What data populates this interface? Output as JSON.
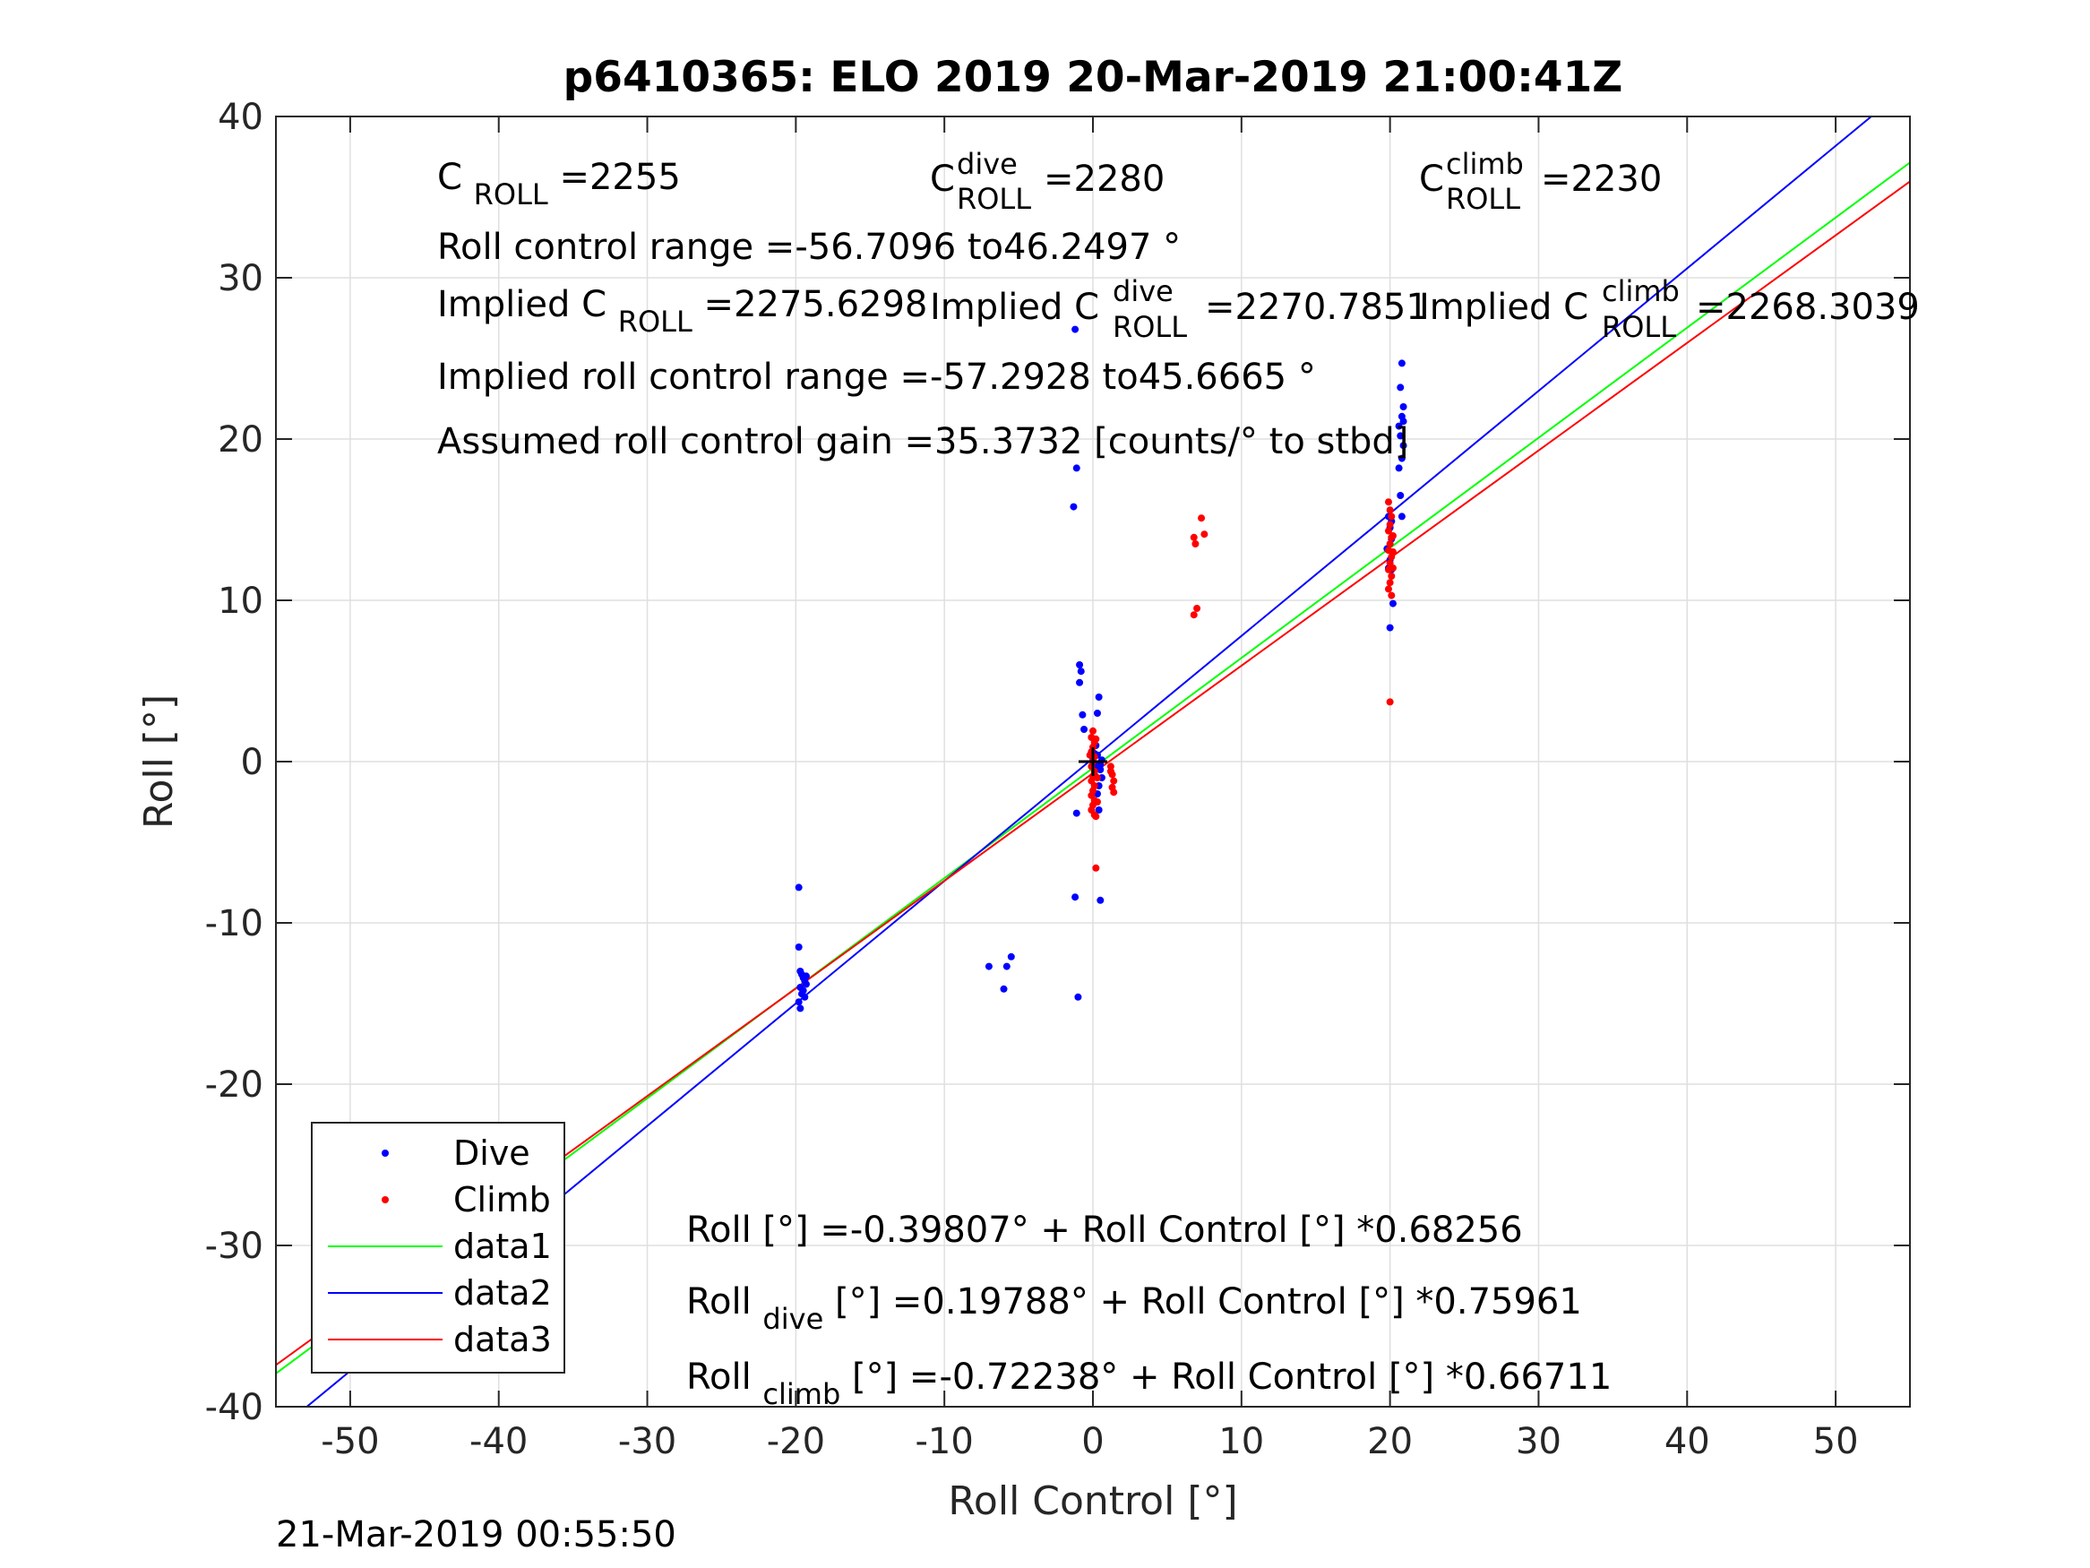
{
  "footer_timestamp": "21-Mar-2019 00:55:50",
  "chart_data": {
    "type": "scatter",
    "title": "p6410365: ELO 2019 20-Mar-2019 21:00:41Z",
    "xlabel": "Roll Control [°]",
    "ylabel": "Roll [°]",
    "xlim": [
      -55,
      55
    ],
    "ylim": [
      -40,
      40
    ],
    "xticks": [
      -50,
      -40,
      -30,
      -20,
      -10,
      0,
      10,
      20,
      30,
      40,
      50
    ],
    "yticks": [
      -40,
      -30,
      -20,
      -10,
      0,
      10,
      20,
      30,
      40
    ],
    "grid": true,
    "legend_position": "bottom-left",
    "colors": {
      "dive": "#0000ff",
      "climb": "#ff0000",
      "data1": "#00ff00",
      "data2": "#0000ff",
      "data3": "#ff0000",
      "origin": "#000000"
    },
    "annotations": {
      "c_roll": {
        "base": "C",
        "sub": "ROLL",
        "value": "=2255"
      },
      "c_roll_dive": {
        "base": "C",
        "sup": "dive",
        "sub": "ROLL",
        "value": "=2280"
      },
      "c_roll_climb": {
        "base": "C",
        "sup": "climb",
        "sub": "ROLL",
        "value": "=2230"
      },
      "roll_control_range": "Roll control range =-56.7096 to46.2497 °",
      "implied_c_roll": {
        "prefix": "Implied C",
        "sub": "ROLL",
        "value": "=2275.6298"
      },
      "implied_c_roll_dive": {
        "prefix": "Implied C",
        "sup": "dive",
        "sub": "ROLL",
        "value": "=2270.7851"
      },
      "implied_c_roll_climb": {
        "prefix": "Implied C",
        "sup": "climb",
        "sub": "ROLL",
        "value": "=2268.3039"
      },
      "implied_roll_control_range": "Implied roll control range =-57.2928 to45.6665 °",
      "assumed_gain": "Assumed roll control gain =35.3732 [counts/° to stbd]",
      "fit_all": "Roll [°] =-0.39807° + Roll Control [°] *0.68256",
      "fit_dive": {
        "base": "Roll",
        "sub": "dive",
        "rest": " [°] =0.19788° + Roll Control [°] *0.75961"
      },
      "fit_climb": {
        "base": "Roll",
        "sub": "climb",
        "rest": " [°] =-0.72238° + Roll Control [°] *0.66711"
      }
    },
    "series": [
      {
        "name": "Dive",
        "kind": "points",
        "points": [
          [
            -19.8,
            -7.8
          ],
          [
            -19.8,
            -11.5
          ],
          [
            -19.7,
            -13.0
          ],
          [
            -19.6,
            -13.2
          ],
          [
            -19.5,
            -13.4
          ],
          [
            -19.4,
            -13.6
          ],
          [
            -19.3,
            -13.8
          ],
          [
            -19.7,
            -14.0
          ],
          [
            -19.5,
            -14.2
          ],
          [
            -19.6,
            -14.4
          ],
          [
            -19.4,
            -14.6
          ],
          [
            -19.8,
            -14.9
          ],
          [
            -19.7,
            -15.3
          ],
          [
            -19.3,
            -13.3
          ],
          [
            -7.0,
            -12.7
          ],
          [
            -5.8,
            -12.7
          ],
          [
            -5.5,
            -12.1
          ],
          [
            -6.0,
            -14.1
          ],
          [
            -1.2,
            26.8
          ],
          [
            -1.1,
            18.2
          ],
          [
            -1.3,
            15.8
          ],
          [
            -1.0,
            -14.6
          ],
          [
            -1.2,
            -8.4
          ],
          [
            -1.1,
            -3.2
          ],
          [
            -0.9,
            6.0
          ],
          [
            -0.8,
            5.6
          ],
          [
            -0.9,
            4.9
          ],
          [
            -0.7,
            2.9
          ],
          [
            -0.6,
            2.0
          ],
          [
            0.4,
            4.0
          ],
          [
            0.3,
            3.0
          ],
          [
            0.5,
            -0.5
          ],
          [
            0.4,
            -1.5
          ],
          [
            0.6,
            -1.0
          ],
          [
            0.3,
            -2.0
          ],
          [
            0.4,
            -3.0
          ],
          [
            0.5,
            -8.6
          ],
          [
            0.2,
            1.0
          ],
          [
            0.1,
            0.5
          ],
          [
            0.2,
            -0.3
          ],
          [
            0.0,
            0.2
          ],
          [
            0.1,
            -0.8
          ],
          [
            -0.1,
            0.6
          ],
          [
            0.3,
            0.4
          ],
          [
            0.6,
            0.1
          ],
          [
            0.5,
            -0.2
          ],
          [
            19.9,
            15.2
          ],
          [
            20.0,
            14.5
          ],
          [
            20.1,
            13.8
          ],
          [
            19.8,
            13.2
          ],
          [
            20.0,
            12.5
          ],
          [
            20.1,
            11.9
          ],
          [
            20.2,
            9.8
          ],
          [
            20.0,
            8.3
          ],
          [
            19.9,
            12.0
          ],
          [
            20.1,
            14.9
          ],
          [
            20.8,
            24.7
          ],
          [
            20.7,
            23.2
          ],
          [
            20.9,
            22.0
          ],
          [
            20.8,
            21.4
          ],
          [
            20.6,
            20.8
          ],
          [
            20.7,
            20.2
          ],
          [
            20.9,
            19.6
          ],
          [
            20.8,
            18.8
          ],
          [
            20.6,
            18.2
          ],
          [
            20.7,
            16.5
          ],
          [
            20.8,
            15.2
          ],
          [
            20.9,
            21.1
          ]
        ]
      },
      {
        "name": "Climb",
        "kind": "points",
        "points": [
          [
            0.0,
            1.9
          ],
          [
            -0.1,
            1.5
          ],
          [
            0.1,
            1.2
          ],
          [
            0.0,
            0.9
          ],
          [
            -0.1,
            0.6
          ],
          [
            0.1,
            0.3
          ],
          [
            0.0,
            0.0
          ],
          [
            -0.1,
            -0.3
          ],
          [
            0.1,
            -0.6
          ],
          [
            0.0,
            -0.9
          ],
          [
            -0.1,
            -1.2
          ],
          [
            0.1,
            -1.5
          ],
          [
            0.0,
            -1.8
          ],
          [
            -0.1,
            -2.1
          ],
          [
            0.1,
            -2.4
          ],
          [
            0.0,
            -2.7
          ],
          [
            -0.1,
            -3.0
          ],
          [
            0.1,
            -3.3
          ],
          [
            0.2,
            -3.4
          ],
          [
            0.2,
            -6.6
          ],
          [
            0.3,
            -1.0
          ],
          [
            -0.2,
            0.4
          ],
          [
            0.2,
            1.4
          ],
          [
            0.3,
            -2.5
          ],
          [
            1.2,
            -0.3
          ],
          [
            1.3,
            -0.8
          ],
          [
            1.4,
            -1.2
          ],
          [
            1.3,
            -1.6
          ],
          [
            1.4,
            -1.9
          ],
          [
            1.2,
            -0.6
          ],
          [
            6.8,
            13.9
          ],
          [
            6.9,
            13.5
          ],
          [
            7.0,
            9.5
          ],
          [
            6.8,
            9.1
          ],
          [
            7.3,
            15.1
          ],
          [
            7.5,
            14.1
          ],
          [
            19.9,
            16.1
          ],
          [
            20.0,
            15.6
          ],
          [
            20.1,
            15.2
          ],
          [
            20.0,
            14.7
          ],
          [
            19.9,
            14.3
          ],
          [
            20.1,
            13.9
          ],
          [
            20.0,
            13.5
          ],
          [
            19.9,
            13.1
          ],
          [
            20.1,
            12.7
          ],
          [
            20.0,
            12.3
          ],
          [
            19.9,
            11.9
          ],
          [
            20.1,
            11.5
          ],
          [
            20.0,
            11.1
          ],
          [
            19.9,
            10.7
          ],
          [
            20.1,
            10.3
          ],
          [
            20.2,
            12.0
          ],
          [
            20.2,
            13.0
          ],
          [
            20.2,
            14.0
          ],
          [
            20.0,
            3.7
          ]
        ]
      },
      {
        "name": "data1",
        "kind": "line",
        "intercept": -0.39807,
        "slope": 0.68256
      },
      {
        "name": "data2",
        "kind": "line",
        "intercept": 0.19788,
        "slope": 0.75961
      },
      {
        "name": "data3",
        "kind": "line",
        "intercept": -0.72238,
        "slope": 0.66711
      }
    ]
  }
}
